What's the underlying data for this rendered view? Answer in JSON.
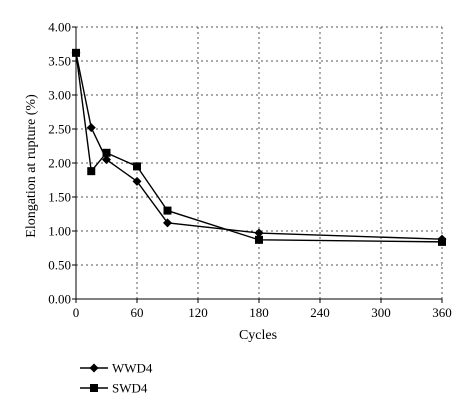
{
  "chart_data": {
    "type": "line",
    "xlabel": "Cycles",
    "ylabel": "Elongation at rupture (%)",
    "xlim": [
      0,
      360
    ],
    "ylim": [
      0,
      4
    ],
    "xticks": [
      0,
      60,
      120,
      180,
      240,
      300,
      360
    ],
    "xtick_labels": [
      "0",
      "60",
      "120",
      "180",
      "240",
      "300",
      "360"
    ],
    "yticks": [
      0,
      0.5,
      1,
      1.5,
      2,
      2.5,
      3,
      3.5,
      4
    ],
    "ytick_labels": [
      "0.00",
      "0.50",
      "1.00",
      "1.50",
      "2.00",
      "2.50",
      "3.00",
      "3.50",
      "4.00"
    ],
    "grid": true,
    "legend_position": "bottom-left",
    "series": [
      {
        "name": "WWD4",
        "marker": "diamond",
        "color": "#000000",
        "x": [
          0,
          15,
          30,
          60,
          90,
          180,
          360
        ],
        "y": [
          3.62,
          2.52,
          2.05,
          1.73,
          1.12,
          0.97,
          0.88
        ]
      },
      {
        "name": "SWD4",
        "marker": "square",
        "color": "#000000",
        "x": [
          0,
          15,
          30,
          60,
          90,
          180,
          360
        ],
        "y": [
          3.62,
          1.88,
          2.15,
          1.95,
          1.3,
          0.87,
          0.84
        ]
      }
    ]
  }
}
